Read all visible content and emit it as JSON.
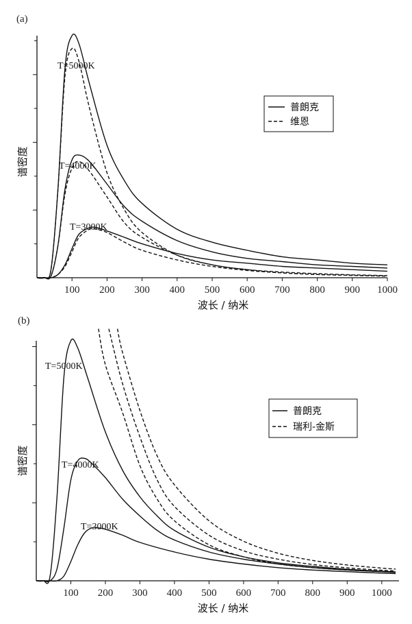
{
  "chart_data": [
    {
      "type": "line",
      "panel_label": "(a)",
      "xlabel": "波长 / 纳米",
      "ylabel": "谱密度",
      "xlim": [
        0,
        1000
      ],
      "ylim": [
        0,
        1.5
      ],
      "xticks": [
        "100",
        "200",
        "300",
        "400",
        "500",
        "600",
        "700",
        "800",
        "900",
        "1000"
      ],
      "ytick_count": 7,
      "legend": {
        "position": "top-right",
        "entries": [
          {
            "label": "普朗克",
            "style": "solid"
          },
          {
            "label": "维恩",
            "style": "dashed"
          }
        ]
      },
      "series": [
        {
          "name": "普朗克",
          "style": "solid",
          "label": "T=5000K",
          "x": [
            0,
            20,
            40,
            60,
            80,
            100,
            120,
            150,
            200,
            250,
            300,
            400,
            500,
            600,
            700,
            800,
            900,
            1000
          ],
          "y": [
            0,
            0,
            0.05,
            0.55,
            1.3,
            1.5,
            1.45,
            1.2,
            0.82,
            0.6,
            0.46,
            0.3,
            0.22,
            0.17,
            0.13,
            0.11,
            0.09,
            0.08
          ]
        },
        {
          "name": "维恩",
          "style": "dashed",
          "x": [
            0,
            20,
            40,
            60,
            80,
            100,
            120,
            150,
            200,
            250,
            300,
            400,
            500,
            600,
            700,
            800,
            900,
            1000
          ],
          "y": [
            0,
            0,
            0.05,
            0.55,
            1.25,
            1.42,
            1.34,
            1.05,
            0.65,
            0.42,
            0.28,
            0.14,
            0.08,
            0.05,
            0.035,
            0.025,
            0.018,
            0.013
          ]
        },
        {
          "name": "普朗克",
          "style": "solid",
          "label": "T=4000K",
          "x": [
            0,
            20,
            40,
            60,
            80,
            100,
            120,
            150,
            200,
            250,
            300,
            400,
            500,
            600,
            700,
            800,
            900,
            1000
          ],
          "y": [
            0,
            0,
            0.01,
            0.2,
            0.55,
            0.73,
            0.76,
            0.72,
            0.58,
            0.44,
            0.35,
            0.23,
            0.16,
            0.12,
            0.1,
            0.08,
            0.07,
            0.06
          ]
        },
        {
          "name": "维恩",
          "style": "dashed",
          "x": [
            0,
            20,
            40,
            60,
            80,
            100,
            120,
            150,
            200,
            250,
            300,
            400,
            500,
            600,
            700,
            800,
            900,
            1000
          ],
          "y": [
            0,
            0,
            0.01,
            0.2,
            0.52,
            0.68,
            0.72,
            0.66,
            0.5,
            0.34,
            0.25,
            0.14,
            0.08,
            0.05,
            0.03,
            0.02,
            0.015,
            0.01
          ]
        },
        {
          "name": "普朗克",
          "style": "solid",
          "label": "T=3000K",
          "x": [
            0,
            20,
            40,
            60,
            80,
            100,
            120,
            150,
            170,
            200,
            250,
            300,
            400,
            500,
            600,
            700,
            800,
            900,
            1000
          ],
          "y": [
            0,
            0,
            0,
            0.02,
            0.08,
            0.18,
            0.27,
            0.31,
            0.31,
            0.29,
            0.25,
            0.21,
            0.15,
            0.11,
            0.09,
            0.07,
            0.06,
            0.05,
            0.04
          ]
        },
        {
          "name": "维恩",
          "style": "dashed",
          "x": [
            0,
            20,
            40,
            60,
            80,
            100,
            120,
            150,
            170,
            200,
            250,
            300,
            400,
            500,
            600,
            700,
            800,
            900,
            1000
          ],
          "y": [
            0,
            0,
            0,
            0.02,
            0.07,
            0.16,
            0.25,
            0.3,
            0.3,
            0.28,
            0.22,
            0.17,
            0.11,
            0.07,
            0.045,
            0.03,
            0.02,
            0.015,
            0.01
          ]
        }
      ]
    },
    {
      "type": "line",
      "panel_label": "(b)",
      "xlabel": "波长 / 纳米",
      "ylabel": "谱密度",
      "xlim": [
        0,
        1050
      ],
      "ylim": [
        0,
        1.0
      ],
      "xticks": [
        "100",
        "200",
        "300",
        "400",
        "500",
        "600",
        "700",
        "800",
        "900",
        "1000"
      ],
      "ytick_count": 6,
      "legend": {
        "position": "top-right",
        "entries": [
          {
            "label": "普朗克",
            "style": "solid"
          },
          {
            "label": "瑞利-金斯",
            "style": "dashed"
          }
        ]
      },
      "series": [
        {
          "name": "普朗克",
          "style": "solid",
          "label": "T=5000K",
          "x": [
            0,
            20,
            40,
            60,
            80,
            100,
            120,
            150,
            200,
            250,
            300,
            350,
            400,
            500,
            600,
            700,
            800,
            900,
            1000,
            1040
          ],
          "y": [
            0,
            0,
            0.02,
            0.35,
            0.85,
            1.0,
            0.97,
            0.84,
            0.62,
            0.46,
            0.35,
            0.27,
            0.21,
            0.14,
            0.1,
            0.075,
            0.06,
            0.048,
            0.04,
            0.037
          ]
        },
        {
          "name": "普朗克",
          "style": "solid",
          "label": "T=4000K",
          "x": [
            0,
            20,
            40,
            60,
            80,
            100,
            120,
            140,
            160,
            200,
            250,
            300,
            350,
            400,
            500,
            600,
            700,
            800,
            900,
            1000,
            1040
          ],
          "y": [
            0,
            0,
            0,
            0.05,
            0.22,
            0.42,
            0.5,
            0.51,
            0.49,
            0.43,
            0.34,
            0.27,
            0.21,
            0.17,
            0.12,
            0.09,
            0.07,
            0.055,
            0.045,
            0.038,
            0.035
          ]
        },
        {
          "name": "普朗克",
          "style": "solid",
          "label": "T=3000K",
          "x": [
            0,
            20,
            40,
            60,
            80,
            100,
            120,
            140,
            160,
            180,
            200,
            250,
            300,
            400,
            500,
            600,
            700,
            800,
            900,
            1000,
            1040
          ],
          "y": [
            0,
            0,
            0,
            0,
            0.02,
            0.08,
            0.15,
            0.2,
            0.22,
            0.22,
            0.215,
            0.19,
            0.16,
            0.12,
            0.09,
            0.07,
            0.055,
            0.045,
            0.038,
            0.032,
            0.03
          ]
        },
        {
          "name": "瑞利-金斯",
          "style": "dashed",
          "x": [
            180,
            200,
            250,
            300,
            350,
            400,
            500,
            600,
            700,
            800,
            900,
            1000,
            1040
          ],
          "y": [
            1.05,
            0.9,
            0.7,
            0.48,
            0.34,
            0.25,
            0.15,
            0.1,
            0.07,
            0.055,
            0.045,
            0.038,
            0.035
          ]
        },
        {
          "name": "瑞利-金斯",
          "style": "dashed",
          "x": [
            210,
            250,
            300,
            350,
            400,
            500,
            600,
            700,
            800,
            900,
            1000,
            1040
          ],
          "y": [
            1.05,
            0.82,
            0.6,
            0.42,
            0.31,
            0.19,
            0.125,
            0.09,
            0.068,
            0.054,
            0.044,
            0.041
          ]
        },
        {
          "name": "瑞利-金斯",
          "style": "dashed",
          "x": [
            235,
            250,
            300,
            350,
            400,
            500,
            600,
            700,
            800,
            900,
            1000,
            1040
          ],
          "y": [
            1.05,
            0.95,
            0.71,
            0.52,
            0.4,
            0.25,
            0.165,
            0.115,
            0.085,
            0.066,
            0.053,
            0.049
          ]
        }
      ]
    }
  ]
}
